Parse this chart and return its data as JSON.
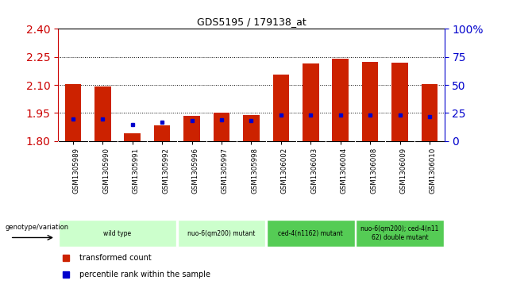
{
  "title": "GDS5195 / 179138_at",
  "samples": [
    "GSM1305989",
    "GSM1305990",
    "GSM1305991",
    "GSM1305992",
    "GSM1305996",
    "GSM1305997",
    "GSM1305998",
    "GSM1306002",
    "GSM1306003",
    "GSM1306004",
    "GSM1306008",
    "GSM1306009",
    "GSM1306010"
  ],
  "red_values": [
    2.105,
    2.09,
    1.84,
    1.885,
    1.935,
    1.95,
    1.94,
    2.155,
    2.215,
    2.24,
    2.225,
    2.22,
    2.105
  ],
  "blue_percentile": [
    20,
    20,
    15,
    17,
    18,
    19,
    18,
    23,
    23,
    23,
    23,
    23,
    22
  ],
  "ymin": 1.8,
  "ymax": 2.4,
  "y_ticks_left": [
    1.8,
    1.95,
    2.1,
    2.25,
    2.4
  ],
  "y_ticks_right": [
    0,
    25,
    50,
    75,
    100
  ],
  "groups": [
    {
      "label": "wild type",
      "start": 0,
      "end": 3,
      "color": "#ccffcc"
    },
    {
      "label": "nuo-6(qm200) mutant",
      "start": 4,
      "end": 6,
      "color": "#ccffcc"
    },
    {
      "label": "ced-4(n1162) mutant",
      "start": 7,
      "end": 9,
      "color": "#55cc55"
    },
    {
      "label": "nuo-6(qm200); ced-4(n11\n62) double mutant",
      "start": 10,
      "end": 12,
      "color": "#55cc55"
    }
  ],
  "genotype_label": "genotype/variation",
  "legend_red": "transformed count",
  "legend_blue": "percentile rank within the sample",
  "bar_width": 0.55,
  "bar_color_red": "#cc2200",
  "bar_color_blue": "#0000cc",
  "axis_color_left": "#cc0000",
  "axis_color_right": "#0000cc",
  "tick_label_bg": "#cccccc",
  "plot_bg": "#ffffff"
}
